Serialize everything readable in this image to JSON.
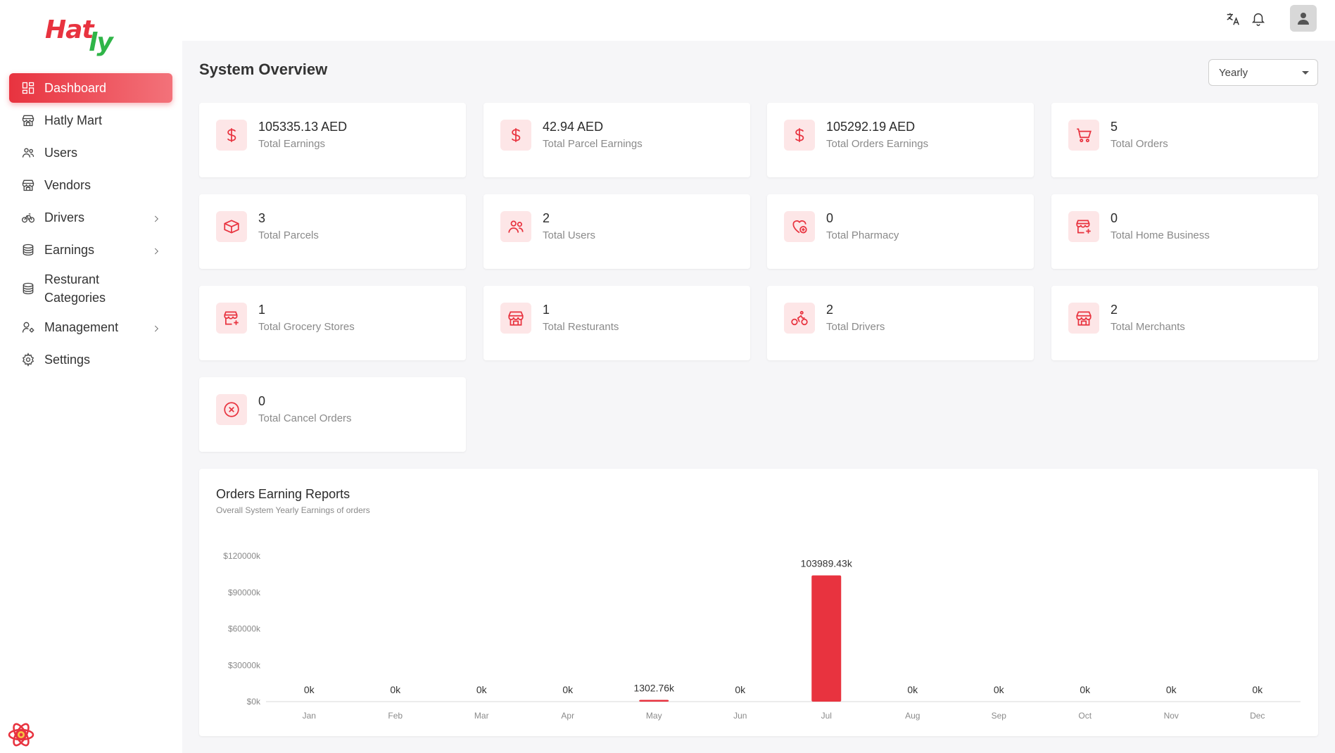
{
  "brand": {
    "part1": "Hat",
    "part2": "ly"
  },
  "sidebar": {
    "items": [
      {
        "label": "Dashboard",
        "icon": "dashboard-icon",
        "active": true,
        "chevron": false
      },
      {
        "label": "Hatly Mart",
        "icon": "store-icon",
        "active": false,
        "chevron": false
      },
      {
        "label": "Users",
        "icon": "users-icon",
        "active": false,
        "chevron": false
      },
      {
        "label": "Vendors",
        "icon": "store-icon",
        "active": false,
        "chevron": false
      },
      {
        "label": "Drivers",
        "icon": "bike-icon",
        "active": false,
        "chevron": true
      },
      {
        "label": "Earnings",
        "icon": "coins-icon",
        "active": false,
        "chevron": true
      },
      {
        "label": "Resturant Categories",
        "icon": "coins-icon",
        "active": false,
        "chevron": false
      },
      {
        "label": "Management",
        "icon": "user-cog-icon",
        "active": false,
        "chevron": true
      },
      {
        "label": "Settings",
        "icon": "gear-icon",
        "active": false,
        "chevron": false
      }
    ]
  },
  "header": {
    "icons": [
      "translate-icon",
      "bell-icon",
      "user-icon"
    ]
  },
  "main": {
    "title": "System Overview",
    "period_select": {
      "value": "Yearly"
    },
    "stats": [
      {
        "value": "105335.13 AED",
        "label": "Total Earnings",
        "icon": "dollar-icon"
      },
      {
        "value": "42.94 AED",
        "label": "Total Parcel Earnings",
        "icon": "dollar-icon"
      },
      {
        "value": "105292.19 AED",
        "label": "Total Orders Earnings",
        "icon": "dollar-icon"
      },
      {
        "value": "5",
        "label": "Total Orders",
        "icon": "cart-icon"
      },
      {
        "value": "3",
        "label": "Total Parcels",
        "icon": "box-icon"
      },
      {
        "value": "2",
        "label": "Total Users",
        "icon": "users-icon"
      },
      {
        "value": "0",
        "label": "Total Pharmacy",
        "icon": "pharmacy-icon"
      },
      {
        "value": "0",
        "label": "Total Home Business",
        "icon": "shop-add-icon"
      },
      {
        "value": "1",
        "label": "Total Grocery Stores",
        "icon": "shop-add-icon"
      },
      {
        "value": "1",
        "label": "Total Resturants",
        "icon": "store-icon"
      },
      {
        "value": "2",
        "label": "Total Drivers",
        "icon": "cyclist-icon"
      },
      {
        "value": "2",
        "label": "Total Merchants",
        "icon": "store-icon"
      },
      {
        "value": "0",
        "label": "Total Cancel Orders",
        "icon": "cancel-icon"
      }
    ],
    "report": {
      "title": "Orders Earning Reports",
      "subtitle": "Overall System Yearly Earnings of orders"
    }
  },
  "chart_data": {
    "type": "bar",
    "categories": [
      "Jan",
      "Feb",
      "Mar",
      "Apr",
      "May",
      "Jun",
      "Jul",
      "Aug",
      "Sep",
      "Oct",
      "Nov",
      "Dec"
    ],
    "values": [
      0,
      0,
      0,
      0,
      1302.76,
      0,
      103989.43,
      0,
      0,
      0,
      0,
      0
    ],
    "data_labels": [
      "0k",
      "0k",
      "0k",
      "0k",
      "1302.76k",
      "0k",
      "103989.43k",
      "0k",
      "0k",
      "0k",
      "0k",
      "0k"
    ],
    "yticks": [
      0,
      30000,
      60000,
      90000,
      120000
    ],
    "ytick_labels": [
      "$0k",
      "$30000k",
      "$60000k",
      "$90000k",
      "$120000k"
    ],
    "ylim": [
      0,
      120000
    ],
    "color": "#e8333f",
    "grid": false
  }
}
